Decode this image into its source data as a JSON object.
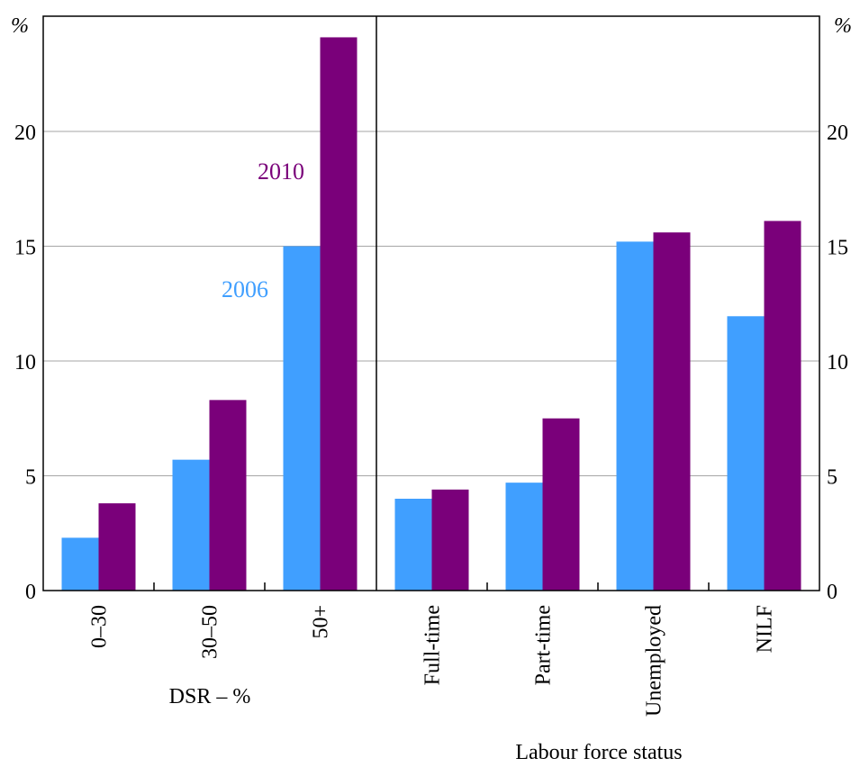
{
  "chart_data": {
    "type": "bar",
    "y_unit": "%",
    "ylim": [
      0,
      25
    ],
    "yticks": [
      0,
      5,
      10,
      15,
      20
    ],
    "grid": true,
    "series_names": [
      "2006",
      "2010"
    ],
    "colors": {
      "2006": "#409FFF",
      "2010": "#7A007A"
    },
    "panels": [
      {
        "xlabel": "DSR – %",
        "categories": [
          "0–30",
          "30–50",
          "50+"
        ],
        "series": [
          {
            "name": "2006",
            "values": [
              2.3,
              5.7,
              15.0
            ]
          },
          {
            "name": "2010",
            "values": [
              3.8,
              8.3,
              24.1
            ]
          }
        ]
      },
      {
        "xlabel": "Labour force status",
        "categories": [
          "Full-time",
          "Part-time",
          "Unemployed",
          "NILF"
        ],
        "series": [
          {
            "name": "2006",
            "values": [
              4.0,
              4.7,
              15.2,
              11.95
            ]
          },
          {
            "name": "2010",
            "values": [
              4.4,
              7.5,
              15.6,
              16.1
            ]
          }
        ]
      }
    ]
  }
}
